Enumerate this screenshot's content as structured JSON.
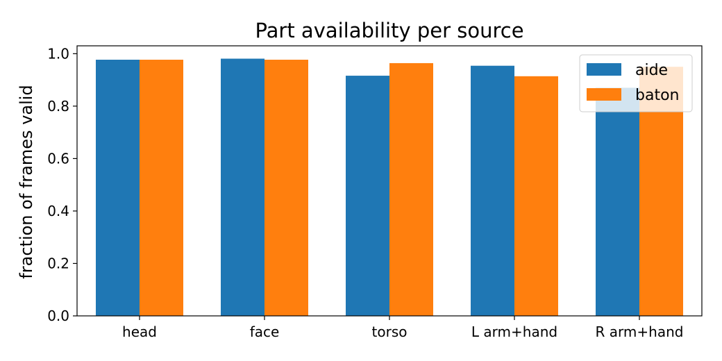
{
  "chart_data": {
    "type": "bar",
    "title": "Part availability per source",
    "xlabel": "",
    "ylabel": "fraction of frames valid",
    "categories": [
      "head",
      "face",
      "torso",
      "L arm+hand",
      "R arm+hand"
    ],
    "series": [
      {
        "name": "aide",
        "color": "#1f77b4",
        "values": [
          0.977,
          0.981,
          0.916,
          0.954,
          0.87
        ]
      },
      {
        "name": "baton",
        "color": "#ff7f0e",
        "values": [
          0.977,
          0.977,
          0.964,
          0.914,
          0.95
        ]
      }
    ],
    "ylim": [
      0,
      1.03
    ],
    "yticks": [
      0.0,
      0.2,
      0.4,
      0.6,
      0.8,
      1.0
    ],
    "ytick_labels": [
      "0.0",
      "0.2",
      "0.4",
      "0.6",
      "0.8",
      "1.0"
    ],
    "grid": false,
    "legend_position": "top-right"
  }
}
